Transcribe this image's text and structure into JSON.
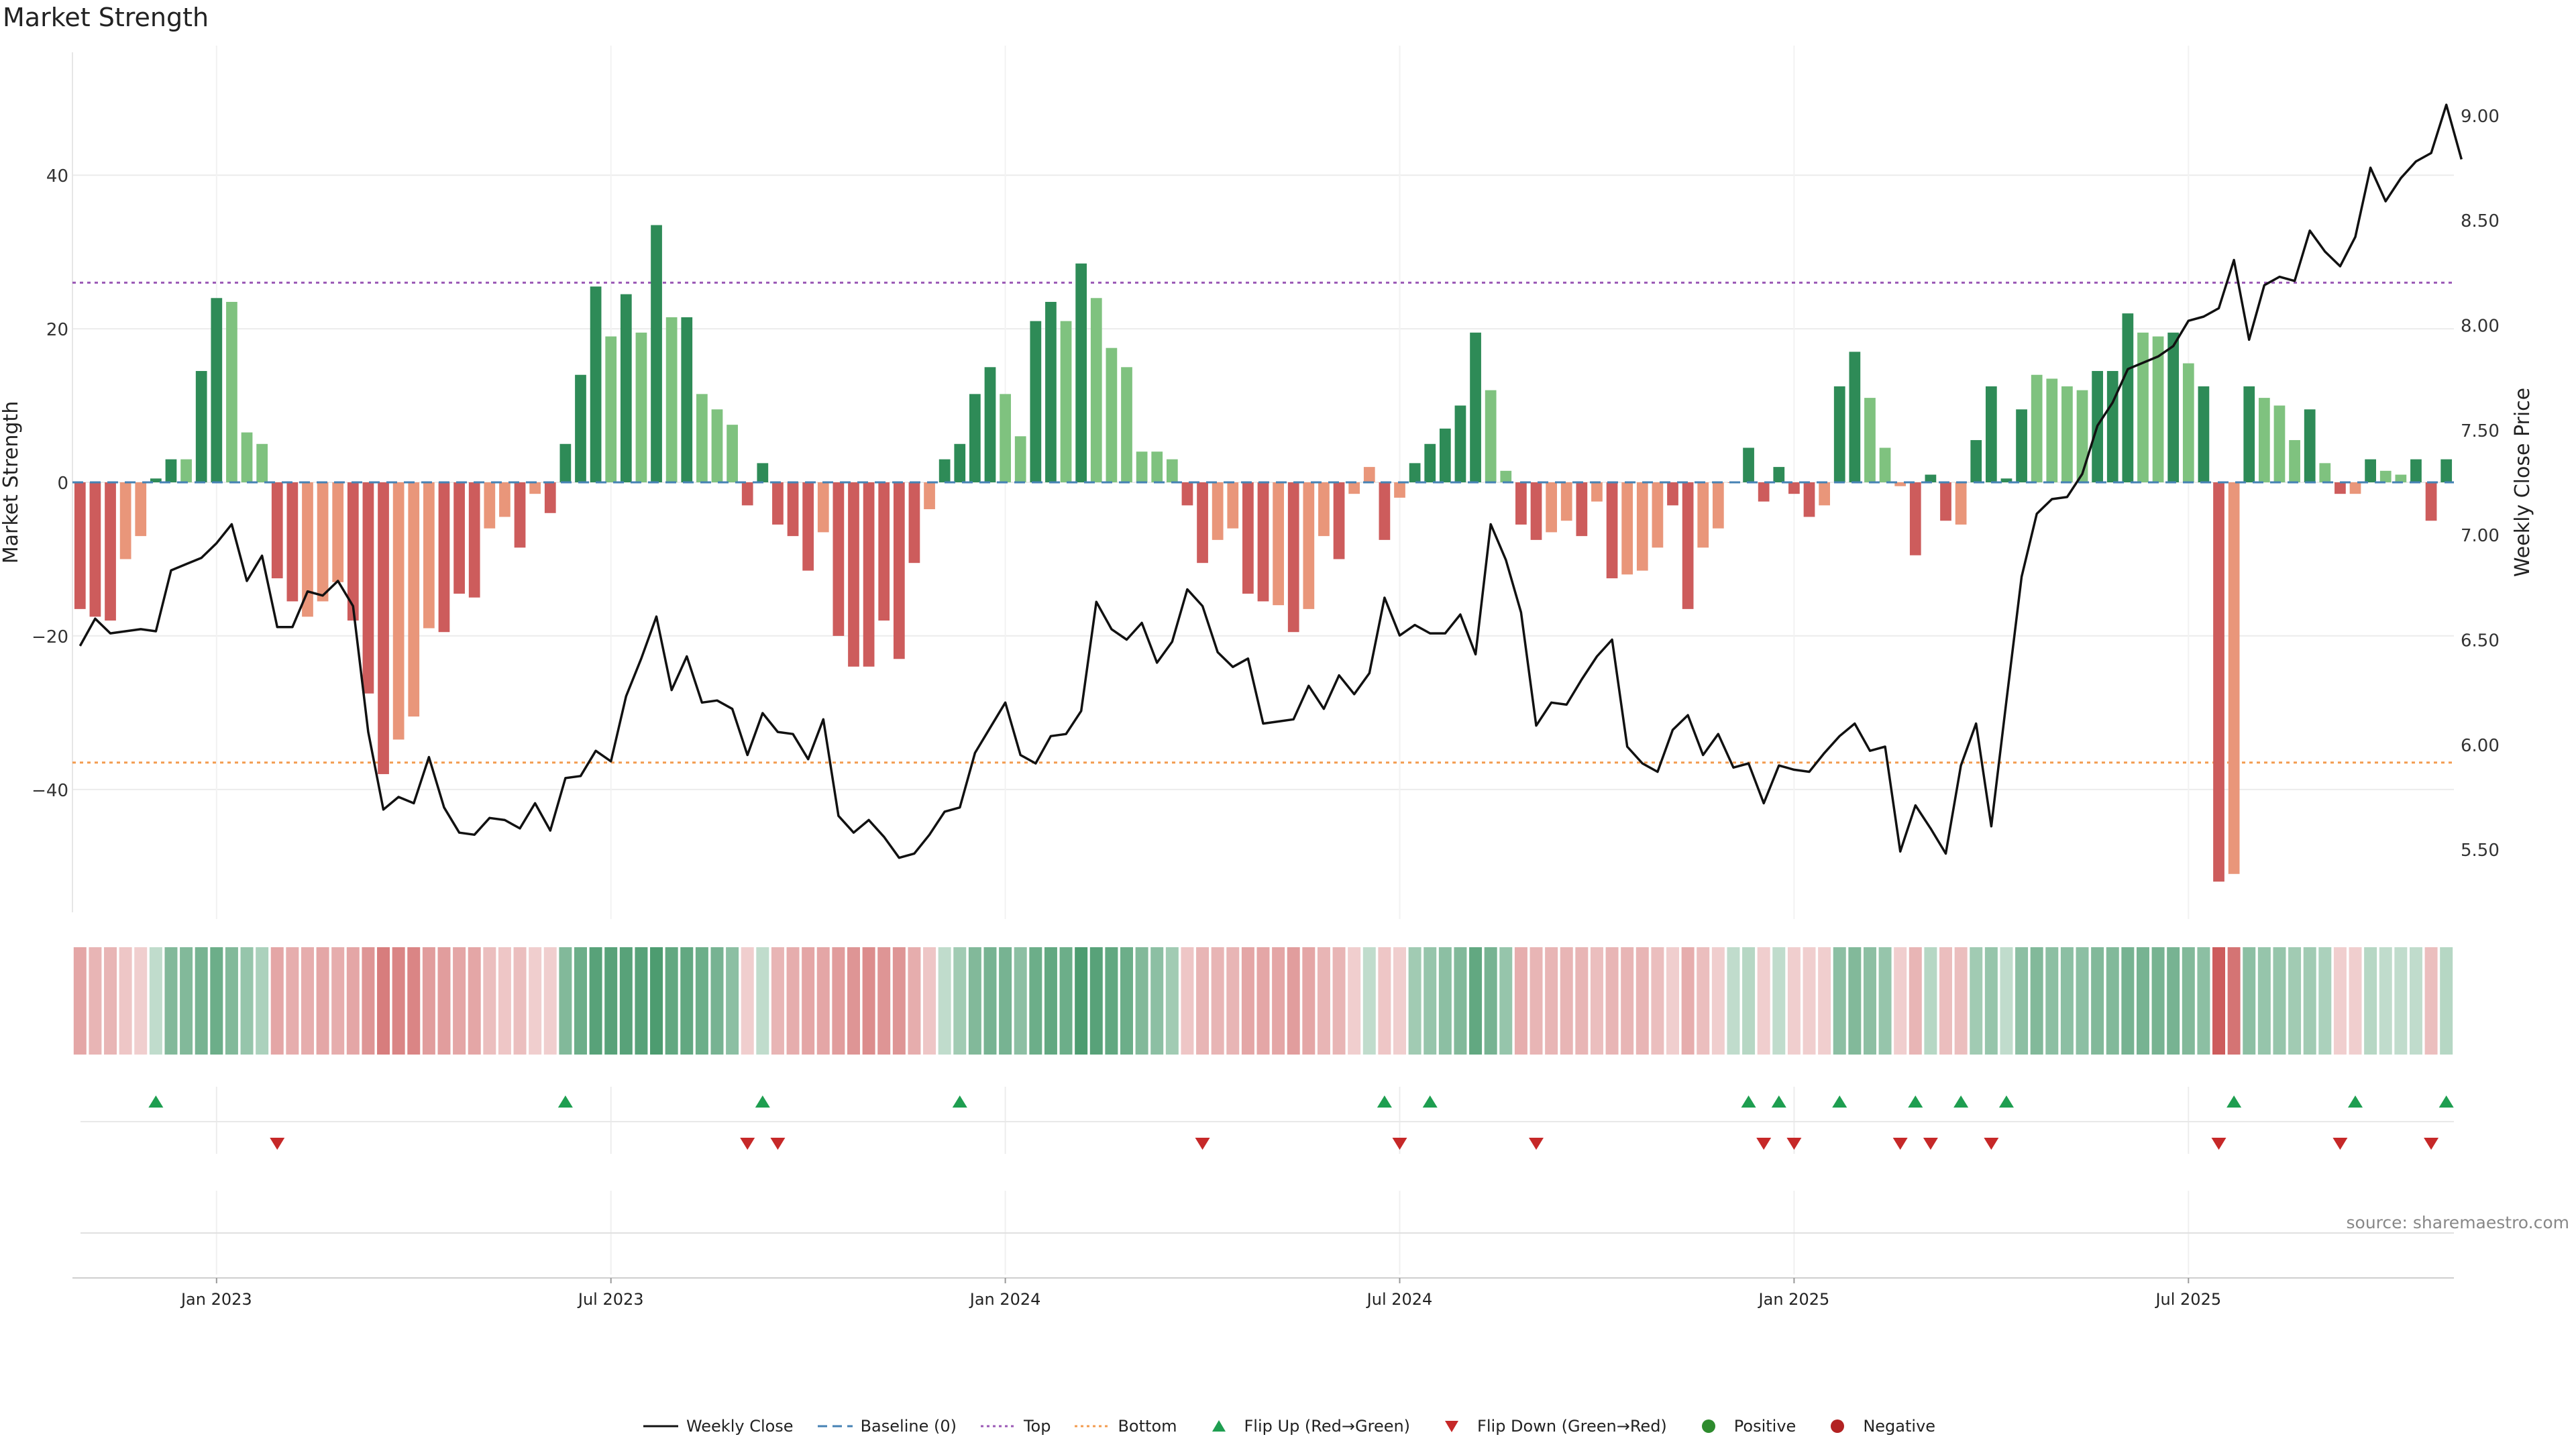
{
  "title": "Market Strength",
  "source": "source: sharemaestro.com",
  "colors": {
    "strong_green": "#2e8b57",
    "light_green": "#7fc27f",
    "strong_red": "#cd5c5c",
    "light_red": "#e9967a",
    "close_line": "#111111",
    "baseline": "#4682b4",
    "top": "#9b59b6",
    "bottom": "#f39c50",
    "flip_up": "#1e9e50",
    "flip_down": "#c62828",
    "positive": "#2e8b2e",
    "negative": "#b22222"
  },
  "legend": [
    {
      "key": "close",
      "label": "Weekly Close"
    },
    {
      "key": "baseline",
      "label": "Baseline (0)"
    },
    {
      "key": "top",
      "label": "Top"
    },
    {
      "key": "bottom",
      "label": "Bottom"
    },
    {
      "key": "flip_up",
      "label": "Flip Up (Red→Green)"
    },
    {
      "key": "flip_down",
      "label": "Flip Down (Green→Red)"
    },
    {
      "key": "positive",
      "label": "Positive"
    },
    {
      "key": "negative",
      "label": "Negative"
    }
  ],
  "chart_data": {
    "type": "bar",
    "title": "Market Strength",
    "ylabel": "Market Strength",
    "y2label": "Weekly Close Price",
    "ylim": [
      -56,
      56
    ],
    "y2lim": [
      5.2,
      9.3
    ],
    "yticks": [
      -40,
      -20,
      0,
      20,
      40
    ],
    "yticks_labels": [
      "−40",
      "−20",
      "0",
      "20",
      "40"
    ],
    "y2ticks": [
      5.5,
      6.0,
      6.5,
      7.0,
      7.5,
      8.0,
      8.5,
      9.0
    ],
    "y2ticks_labels": [
      "5.50",
      "6.00",
      "6.50",
      "7.00",
      "7.50",
      "8.00",
      "8.50",
      "9.00"
    ],
    "top_line": 26,
    "bottom_line": -36.5,
    "x_ticks": [
      {
        "week": 9.5,
        "label": "Jan 2023"
      },
      {
        "week": 35.5,
        "label": "Jul 2023"
      },
      {
        "week": 61.5,
        "label": "Jan 2024"
      },
      {
        "week": 87.5,
        "label": "Jul 2024"
      },
      {
        "week": 113.5,
        "label": "Jan 2025"
      },
      {
        "week": 139.5,
        "label": "Jul 2025"
      }
    ],
    "series": [
      {
        "name": "Market Strength",
        "values": [
          -16.5,
          -17.5,
          -18,
          -10,
          -7,
          0.5,
          3,
          3,
          14.5,
          24,
          23.5,
          6.5,
          5,
          -12.5,
          -15.5,
          -17.5,
          -15.5,
          -13,
          -18,
          -27.5,
          -38,
          -33.5,
          -30.5,
          -19,
          -19.5,
          -14.5,
          -15,
          -6,
          -4.5,
          -8.5,
          -1.5,
          -4,
          5,
          14,
          25.5,
          19,
          24.5,
          19.5,
          33.5,
          21.5,
          21.5,
          11.5,
          9.5,
          7.5,
          -3,
          2.5,
          -5.5,
          -7,
          -11.5,
          -6.5,
          -20,
          -24,
          -24,
          -18,
          -23,
          -10.5,
          -3.5,
          3,
          5,
          11.5,
          15,
          11.5,
          6,
          21,
          23.5,
          21,
          28.5,
          24,
          17.5,
          15,
          4,
          4,
          3,
          -3,
          -10.5,
          -7.5,
          -6,
          -14.5,
          -15.5,
          -16,
          -19.5,
          -16.5,
          -7,
          -10,
          -1.5,
          2,
          -7.5,
          -2,
          2.5,
          5,
          7,
          10,
          19.5,
          12,
          1.5,
          -5.5,
          -7.5,
          -6.5,
          -5,
          -7,
          -2.5,
          -12.5,
          -12,
          -11.5,
          -8.5,
          -3,
          -16.5,
          -8.5,
          -6,
          0,
          4.5,
          -2.5,
          2,
          -1.5,
          -4.5,
          -3,
          12.5,
          17,
          11,
          4.5,
          -0.5,
          -9.5,
          1,
          -5,
          -5.5,
          5.5,
          12.5,
          0.5,
          9.5,
          14,
          13.5,
          12.5,
          12,
          14.5,
          14.5,
          22,
          19.5,
          19,
          19.5,
          15.5,
          12.5,
          -52,
          -51,
          12.5,
          11,
          10,
          5.5,
          9.5,
          2.5,
          -1.5,
          -1.5,
          3,
          1.5,
          1,
          3,
          -5,
          3
        ],
        "colors": [
          "r",
          "r",
          "r",
          "lr",
          "lr",
          "g",
          "g",
          "lg",
          "g",
          "g",
          "lg",
          "lg",
          "lg",
          "r",
          "r",
          "lr",
          "lr",
          "lr",
          "r",
          "r",
          "r",
          "lr",
          "lr",
          "lr",
          "r",
          "r",
          "r",
          "lr",
          "lr",
          "r",
          "lr",
          "r",
          "g",
          "g",
          "g",
          "lg",
          "g",
          "lg",
          "g",
          "lg",
          "g",
          "lg",
          "lg",
          "lg",
          "r",
          "g",
          "r",
          "r",
          "r",
          "lr",
          "r",
          "r",
          "r",
          "r",
          "r",
          "r",
          "lr",
          "g",
          "g",
          "g",
          "g",
          "lg",
          "lg",
          "g",
          "g",
          "lg",
          "g",
          "lg",
          "lg",
          "lg",
          "lg",
          "lg",
          "lg",
          "r",
          "r",
          "lr",
          "lr",
          "r",
          "r",
          "lr",
          "r",
          "lr",
          "lr",
          "r",
          "lr",
          "lr",
          "r",
          "lr",
          "g",
          "g",
          "g",
          "g",
          "g",
          "lg",
          "lg",
          "r",
          "r",
          "lr",
          "lr",
          "r",
          "lr",
          "r",
          "lr",
          "lr",
          "lr",
          "r",
          "r",
          "lr",
          "lr",
          "lr",
          "g",
          "r",
          "g",
          "r",
          "r",
          "lr",
          "g",
          "g",
          "lg",
          "lg",
          "lr",
          "r",
          "g",
          "r",
          "lr",
          "g",
          "g",
          "g",
          "g",
          "lg",
          "lg",
          "lg",
          "lg",
          "g",
          "g",
          "g",
          "lg",
          "lg",
          "g",
          "lg",
          "g",
          "r",
          "lr",
          "g",
          "lg",
          "lg",
          "lg",
          "g",
          "lg",
          "r",
          "lr",
          "g",
          "lg",
          "lg",
          "g",
          "r",
          "g"
        ]
      },
      {
        "name": "Weekly Close",
        "values": [
          6.47,
          6.6,
          6.53,
          6.54,
          6.55,
          6.54,
          6.83,
          6.86,
          6.89,
          6.96,
          7.05,
          6.78,
          6.9,
          6.56,
          6.56,
          6.73,
          6.71,
          6.78,
          6.66,
          6.06,
          5.69,
          5.75,
          5.72,
          5.94,
          5.7,
          5.58,
          5.57,
          5.65,
          5.64,
          5.6,
          5.72,
          5.59,
          5.84,
          5.85,
          5.97,
          5.92,
          6.23,
          6.41,
          6.61,
          6.26,
          6.42,
          6.2,
          6.21,
          6.17,
          5.95,
          6.15,
          6.06,
          6.05,
          5.93,
          6.12,
          5.66,
          5.58,
          5.64,
          5.56,
          5.46,
          5.48,
          5.57,
          5.68,
          5.7,
          5.96,
          6.08,
          6.2,
          5.95,
          5.91,
          6.04,
          6.05,
          6.16,
          6.68,
          6.55,
          6.5,
          6.58,
          6.39,
          6.49,
          6.74,
          6.66,
          6.44,
          6.37,
          6.41,
          6.1,
          6.11,
          6.12,
          6.28,
          6.17,
          6.33,
          6.24,
          6.34,
          6.7,
          6.52,
          6.57,
          6.53,
          6.53,
          6.62,
          6.43,
          7.05,
          6.88,
          6.63,
          6.09,
          6.2,
          6.19,
          6.31,
          6.42,
          6.5,
          5.99,
          5.91,
          5.87,
          6.07,
          6.14,
          5.95,
          6.05,
          5.89,
          5.91,
          5.72,
          5.9,
          5.88,
          5.87,
          5.96,
          6.04,
          6.1,
          5.97,
          5.99,
          5.49,
          5.71,
          5.6,
          5.48,
          5.9,
          6.1,
          5.61,
          6.21,
          6.8,
          7.1,
          7.17,
          7.18,
          7.29,
          7.52,
          7.63,
          7.79,
          7.82,
          7.85,
          7.9,
          8.02,
          8.04,
          8.08,
          8.31,
          7.93,
          8.19,
          8.23,
          8.21,
          8.45,
          8.35,
          8.28,
          8.42,
          8.75,
          8.59,
          8.7,
          8.78,
          8.82,
          9.05,
          8.79
        ]
      }
    ],
    "strength_strip_intensity": [
      0.55,
      0.45,
      0.45,
      0.35,
      0.3,
      0.3,
      0.6,
      0.6,
      0.65,
      0.7,
      0.6,
      0.5,
      0.4,
      0.55,
      0.5,
      0.5,
      0.55,
      0.5,
      0.55,
      0.65,
      0.8,
      0.75,
      0.75,
      0.6,
      0.6,
      0.55,
      0.55,
      0.4,
      0.35,
      0.4,
      0.3,
      0.3,
      0.6,
      0.7,
      0.8,
      0.8,
      0.8,
      0.8,
      0.85,
      0.75,
      0.75,
      0.7,
      0.65,
      0.55,
      0.3,
      0.3,
      0.45,
      0.5,
      0.55,
      0.55,
      0.6,
      0.65,
      0.7,
      0.65,
      0.65,
      0.5,
      0.35,
      0.3,
      0.45,
      0.6,
      0.65,
      0.65,
      0.55,
      0.7,
      0.75,
      0.7,
      0.85,
      0.8,
      0.75,
      0.7,
      0.6,
      0.55,
      0.45,
      0.35,
      0.45,
      0.45,
      0.45,
      0.55,
      0.55,
      0.55,
      0.6,
      0.55,
      0.45,
      0.45,
      0.3,
      0.3,
      0.35,
      0.3,
      0.45,
      0.5,
      0.55,
      0.6,
      0.75,
      0.65,
      0.5,
      0.5,
      0.45,
      0.45,
      0.45,
      0.45,
      0.4,
      0.45,
      0.45,
      0.45,
      0.4,
      0.3,
      0.5,
      0.4,
      0.3,
      0.3,
      0.35,
      0.3,
      0.3,
      0.3,
      0.3,
      0.3,
      0.55,
      0.6,
      0.55,
      0.5,
      0.3,
      0.45,
      0.35,
      0.4,
      0.4,
      0.45,
      0.5,
      0.3,
      0.55,
      0.6,
      0.55,
      0.55,
      0.55,
      0.6,
      0.6,
      0.65,
      0.65,
      0.65,
      0.65,
      0.6,
      0.55,
      1,
      0.85,
      0.55,
      0.5,
      0.5,
      0.45,
      0.45,
      0.4,
      0.3,
      0.3,
      0.35,
      0.3,
      0.3,
      0.3,
      0.4,
      0.35
    ],
    "flip_up_weeks": [
      5,
      32,
      45,
      58,
      86,
      89,
      110,
      112,
      116,
      121,
      124,
      127,
      142,
      150,
      156
    ],
    "flip_down_weeks": [
      13,
      44,
      46,
      74,
      87,
      96,
      111,
      113,
      120,
      122,
      126,
      141,
      149,
      155
    ]
  }
}
